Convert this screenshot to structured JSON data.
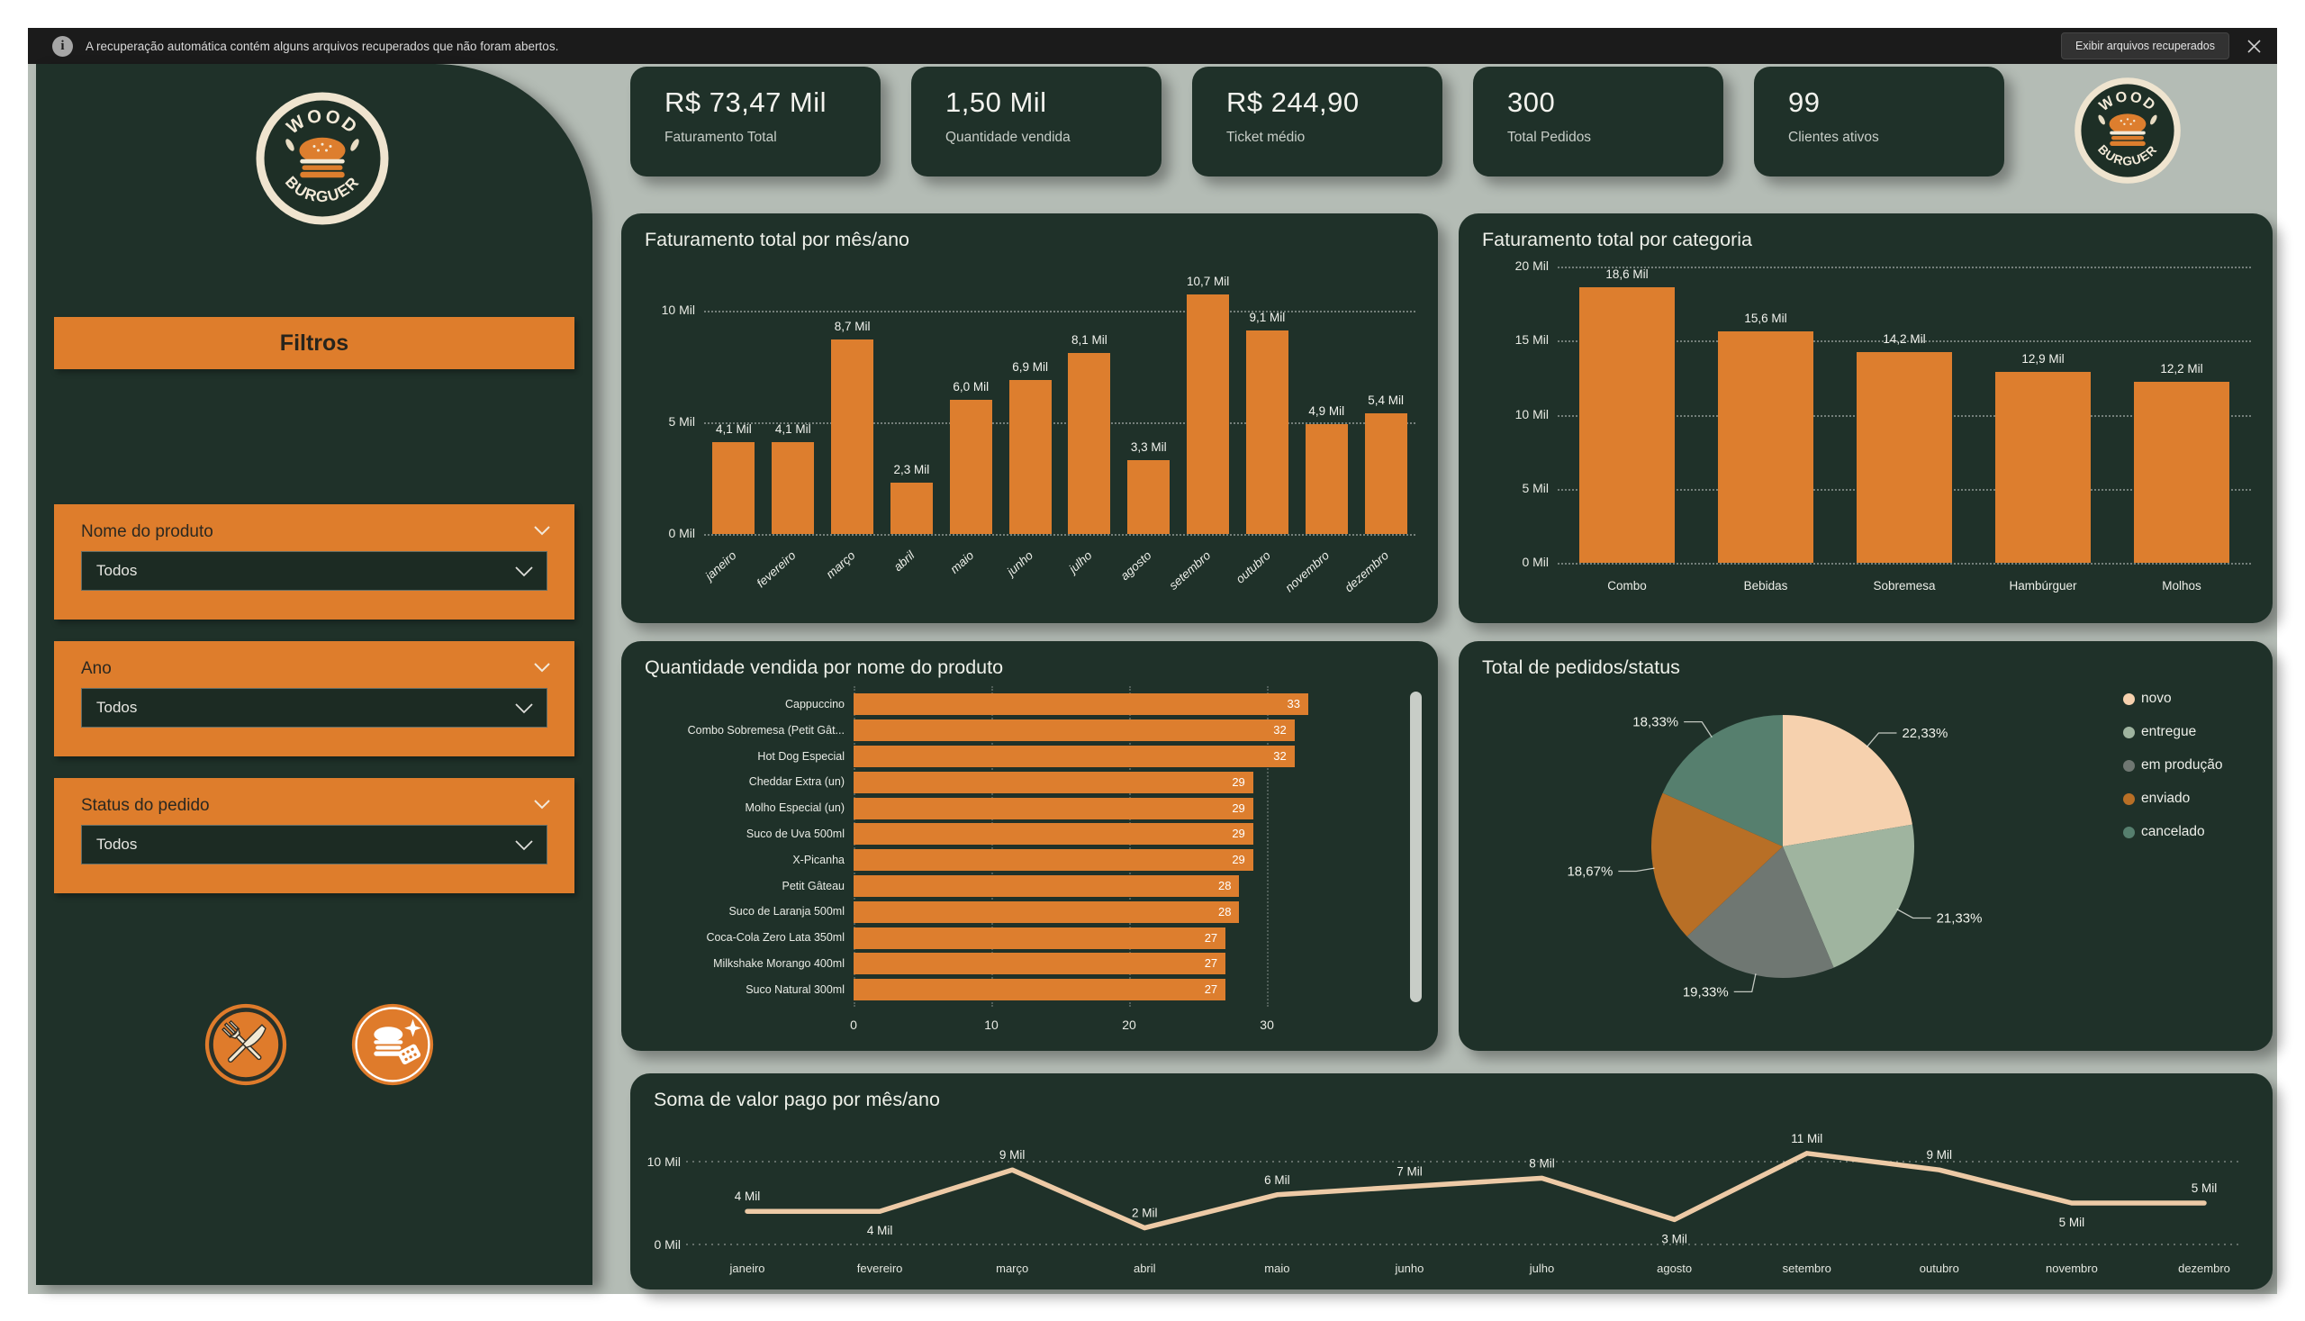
{
  "notification": {
    "message": "A recuperação automática contém alguns arquivos recuperados que não foram abertos.",
    "action_label": "Exibir arquivos recuperados"
  },
  "brand": {
    "top": "WOOD",
    "bottom": "BURGUER"
  },
  "sidebar": {
    "filters_title": "Filtros",
    "filters": [
      {
        "label": "Nome do produto",
        "value": "Todos"
      },
      {
        "label": "Ano",
        "value": "Todos"
      },
      {
        "label": "Status do pedido",
        "value": "Todos"
      }
    ]
  },
  "kpis": [
    {
      "value": "R$ 73,47 Mil",
      "label": "Faturamento Total"
    },
    {
      "value": "1,50 Mil",
      "label": "Quantidade vendida"
    },
    {
      "value": "R$ 244,90",
      "label": "Ticket médio"
    },
    {
      "value": "300",
      "label": "Total Pedidos"
    },
    {
      "value": "99",
      "label": "Clientes ativos"
    }
  ],
  "colors": {
    "accent_orange": "#de7d2c",
    "bar_orange": "#dd7e2e",
    "card_bg": "#1f3129",
    "canvas_bg": "#b4bcb5",
    "line": "#edcaa6"
  },
  "chart_data": [
    {
      "id": "revenue_by_month",
      "type": "bar",
      "title": "Faturamento total por mês/ano",
      "categories": [
        "janeiro",
        "fevereiro",
        "março",
        "abril",
        "maio",
        "junho",
        "julho",
        "agosto",
        "setembro",
        "outubro",
        "novembro",
        "dezembro"
      ],
      "values": [
        4.1,
        4.1,
        8.7,
        2.3,
        6.0,
        6.9,
        8.1,
        3.3,
        10.7,
        9.1,
        4.9,
        5.4
      ],
      "value_labels": [
        "4,1 Mil",
        "4,1 Mil",
        "8,7 Mil",
        "2,3 Mil",
        "6,0 Mil",
        "6,9 Mil",
        "8,1 Mil",
        "3,3 Mil",
        "10,7 Mil",
        "9,1 Mil",
        "4,9 Mil",
        "5,4 Mil"
      ],
      "ylim": [
        0,
        12
      ],
      "yticks": [
        {
          "v": 0,
          "label": "0 Mil"
        },
        {
          "v": 5,
          "label": "5 Mil"
        },
        {
          "v": 10,
          "label": "10 Mil"
        }
      ],
      "grid": "dotted"
    },
    {
      "id": "revenue_by_category",
      "type": "bar",
      "title": "Faturamento total por categoria",
      "categories": [
        "Combo",
        "Bebidas",
        "Sobremesa",
        "Hambúrguer",
        "Molhos"
      ],
      "values": [
        18.6,
        15.6,
        14.2,
        12.9,
        12.2
      ],
      "value_labels": [
        "18,6 Mil",
        "15,6 Mil",
        "14,2 Mil",
        "12,9 Mil",
        "12,2 Mil"
      ],
      "ylim": [
        0,
        20
      ],
      "yticks": [
        {
          "v": 0,
          "label": "0 Mil"
        },
        {
          "v": 5,
          "label": "5 Mil"
        },
        {
          "v": 10,
          "label": "10 Mil"
        },
        {
          "v": 15,
          "label": "15 Mil"
        },
        {
          "v": 20,
          "label": "20 Mil"
        }
      ],
      "grid": "dotted"
    },
    {
      "id": "qty_by_product",
      "type": "bar-horizontal",
      "title": "Quantidade vendida por nome do produto",
      "categories": [
        "Cappuccino",
        "Combo Sobremesa (Petit Gât...",
        "Hot Dog Especial",
        "Cheddar Extra (un)",
        "Molho Especial (un)",
        "Suco de Uva 500ml",
        "X-Picanha",
        "Petit Gâteau",
        "Suco de Laranja 500ml",
        "Coca-Cola Zero Lata 350ml",
        "Milkshake Morango 400ml",
        "Suco Natural 300ml"
      ],
      "values": [
        33,
        32,
        32,
        29,
        29,
        29,
        29,
        28,
        28,
        27,
        27,
        27
      ],
      "xlim": [
        0,
        33
      ],
      "xticks": [
        {
          "v": 0,
          "label": "0"
        },
        {
          "v": 10,
          "label": "10"
        },
        {
          "v": 20,
          "label": "20"
        },
        {
          "v": 30,
          "label": "30"
        }
      ],
      "scrollbar": true
    },
    {
      "id": "orders_by_status",
      "type": "pie",
      "title": "Total de pedidos/status",
      "labels": [
        "novo",
        "entregue",
        "em produção",
        "enviado",
        "cancelado"
      ],
      "values": [
        22.33,
        21.33,
        19.33,
        18.67,
        18.33
      ],
      "value_labels": [
        "22,33%",
        "21,33%",
        "19,33%",
        "18,67%",
        "18,33%"
      ],
      "colors": [
        "#f6d1ae",
        "#9fb49f",
        "#6f7772",
        "#b86f26",
        "#567f6e"
      ],
      "legend_position": "right"
    },
    {
      "id": "paid_by_month",
      "type": "line",
      "title": "Soma de valor pago por mês/ano",
      "categories": [
        "janeiro",
        "fevereiro",
        "março",
        "abril",
        "maio",
        "junho",
        "julho",
        "agosto",
        "setembro",
        "outubro",
        "novembro",
        "dezembro"
      ],
      "values": [
        4,
        4,
        9,
        2,
        6,
        7,
        8,
        3,
        11,
        9,
        5,
        5
      ],
      "value_labels": [
        "4 Mil",
        "4 Mil",
        "9 Mil",
        "2 Mil",
        "6 Mil",
        "7 Mil",
        "8 Mil",
        "3 Mil",
        "11 Mil",
        "9 Mil",
        "5 Mil",
        "5 Mil"
      ],
      "label_side": [
        "above",
        "below",
        "above",
        "above",
        "above",
        "above",
        "above",
        "below",
        "above",
        "above",
        "below",
        "above"
      ],
      "ylim": [
        0,
        12.5
      ],
      "yticks": [
        {
          "v": 0,
          "label": "0 Mil"
        },
        {
          "v": 10,
          "label": "10 Mil"
        }
      ]
    }
  ]
}
